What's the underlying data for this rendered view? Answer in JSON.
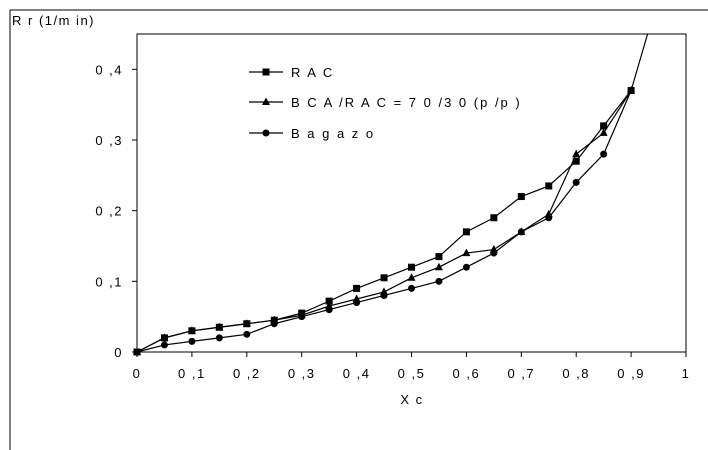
{
  "chart_data": {
    "type": "line",
    "ylabel": "R r  (1/m in)",
    "xlabel": "X c",
    "xlim": [
      0,
      1
    ],
    "ylim": [
      0,
      0.45
    ],
    "x_ticks": [
      {
        "value": 0,
        "label": "0"
      },
      {
        "value": 0.1,
        "label": "0 ,1"
      },
      {
        "value": 0.2,
        "label": "0 ,2"
      },
      {
        "value": 0.3,
        "label": "0 ,3"
      },
      {
        "value": 0.4,
        "label": "0 ,4"
      },
      {
        "value": 0.5,
        "label": "0 ,5"
      },
      {
        "value": 0.6,
        "label": "0 ,6"
      },
      {
        "value": 0.7,
        "label": "0 ,7"
      },
      {
        "value": 0.8,
        "label": "0 ,8"
      },
      {
        "value": 0.9,
        "label": "0 ,9"
      },
      {
        "value": 1,
        "label": "1"
      }
    ],
    "y_ticks": [
      {
        "value": 0,
        "label": "0"
      },
      {
        "value": 0.1,
        "label": "0 ,1"
      },
      {
        "value": 0.2,
        "label": "0 ,2"
      },
      {
        "value": 0.3,
        "label": "0 ,3"
      },
      {
        "value": 0.4,
        "label": "0 ,4"
      }
    ],
    "grid": false,
    "legend_position": "top-center",
    "series": [
      {
        "name": "R A C",
        "marker": "square",
        "x": [
          0,
          0.05,
          0.1,
          0.15,
          0.2,
          0.25,
          0.3,
          0.35,
          0.4,
          0.45,
          0.5,
          0.55,
          0.6,
          0.65,
          0.7,
          0.75,
          0.8,
          0.85,
          0.9,
          0.93
        ],
        "y": [
          0,
          0.02,
          0.03,
          0.035,
          0.04,
          0.045,
          0.055,
          0.072,
          0.09,
          0.105,
          0.12,
          0.135,
          0.17,
          0.19,
          0.22,
          0.235,
          0.27,
          0.32,
          0.37,
          0.45
        ],
        "markers": [
          true,
          true,
          true,
          true,
          true,
          true,
          true,
          true,
          true,
          true,
          true,
          true,
          true,
          true,
          true,
          true,
          true,
          true,
          true,
          false
        ]
      },
      {
        "name": "B C A /R A C  = 7 0 /3 0 (p /p )",
        "marker": "triangle",
        "x": [
          0,
          0.05,
          0.1,
          0.15,
          0.2,
          0.25,
          0.3,
          0.35,
          0.4,
          0.45,
          0.5,
          0.55,
          0.6,
          0.65,
          0.7,
          0.75,
          0.8,
          0.85,
          0.9
        ],
        "y": [
          0,
          0.02,
          0.03,
          0.035,
          0.04,
          0.045,
          0.052,
          0.065,
          0.075,
          0.085,
          0.105,
          0.12,
          0.14,
          0.145,
          0.17,
          0.195,
          0.28,
          0.31,
          0.37
        ]
      },
      {
        "name": "B a g a z o",
        "marker": "circle",
        "x": [
          0,
          0.05,
          0.1,
          0.15,
          0.2,
          0.25,
          0.3,
          0.35,
          0.4,
          0.45,
          0.5,
          0.55,
          0.6,
          0.65,
          0.7,
          0.75,
          0.8,
          0.85,
          0.9
        ],
        "y": [
          0,
          0.01,
          0.015,
          0.02,
          0.025,
          0.04,
          0.05,
          0.06,
          0.07,
          0.08,
          0.09,
          0.1,
          0.12,
          0.14,
          0.17,
          0.19,
          0.24,
          0.28,
          0.37
        ]
      }
    ]
  }
}
